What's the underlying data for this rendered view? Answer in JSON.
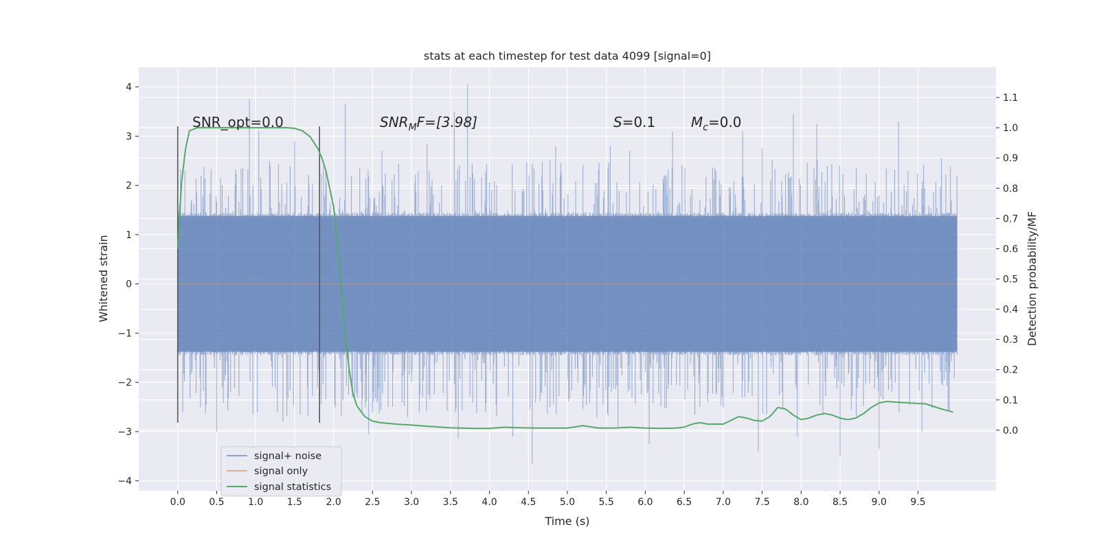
{
  "chart_data": {
    "type": "line",
    "title": "stats at each timestep for test data 4099 [signal=0]",
    "xlabel": "Time (s)",
    "ylabel_left": "Whitened strain",
    "ylabel_right": "Detection probability/MF",
    "xlim": [
      -0.5,
      10.5
    ],
    "ylim_left": [
      -4.2,
      4.4
    ],
    "ylim_right": [
      -0.2,
      1.2
    ],
    "xticks": [
      "0.0",
      "0.5",
      "1.0",
      "1.5",
      "2.0",
      "2.5",
      "3.0",
      "3.5",
      "4.0",
      "4.5",
      "5.0",
      "5.5",
      "6.0",
      "6.5",
      "7.0",
      "7.5",
      "8.0",
      "8.5",
      "9.0",
      "9.5"
    ],
    "yticks_left": [
      "−4",
      "−3",
      "−2",
      "−1",
      "0",
      "1",
      "2",
      "3",
      "4"
    ],
    "yticks_right": [
      "0.0",
      "0.1",
      "0.2",
      "0.3",
      "0.4",
      "0.5",
      "0.6",
      "0.7",
      "0.8",
      "0.9",
      "1.0",
      "1.1"
    ],
    "grid": true,
    "annotations": {
      "snr_opt": "SNR_opt=0.0",
      "snr_mf_prefix": "SNR",
      "snr_mf_sub": "M",
      "snr_mf_suffix": "F=[3.98]",
      "s_italic": "S",
      "s_value": "=0.1",
      "mc_italic": "M",
      "mc_sub": "c",
      "mc_value": "=0.0"
    },
    "vertical_markers_x": [
      0.0,
      1.82
    ],
    "legend": {
      "placement": "lower-left",
      "entries": [
        {
          "label": "signal+ noise",
          "color": "#4c72b0"
        },
        {
          "label": "signal only",
          "color": "#dd8452"
        },
        {
          "label": "signal statistics",
          "color": "#55a868"
        }
      ]
    },
    "series": [
      {
        "name": "signal+ noise",
        "axis": "left",
        "color": "#4c72b0",
        "description_range": "noise band approximately ±1.4 with spikes up to ±4.05",
        "x_range": [
          0.0,
          10.0
        ],
        "spikes_up": [
          [
            0.92,
            3.75
          ],
          [
            1.04,
            3.1
          ],
          [
            1.5,
            2.9
          ],
          [
            1.82,
            3.1
          ],
          [
            2.15,
            3.65
          ],
          [
            2.62,
            2.7
          ],
          [
            3.55,
            3.5
          ],
          [
            3.72,
            4.05
          ],
          [
            4.85,
            2.8
          ],
          [
            5.55,
            2.8
          ],
          [
            5.8,
            2.7
          ],
          [
            6.35,
            3.1
          ],
          [
            7.25,
            3.1
          ],
          [
            7.5,
            2.75
          ],
          [
            7.9,
            3.45
          ],
          [
            8.2,
            3.25
          ],
          [
            9.25,
            3.3
          ],
          [
            9.8,
            2.55
          ],
          [
            0.55,
            2.15
          ],
          [
            3.2,
            2.85
          ]
        ],
        "spikes_down": [
          [
            0.5,
            -3.0
          ],
          [
            1.35,
            -2.8
          ],
          [
            2.45,
            -3.05
          ],
          [
            3.6,
            -3.15
          ],
          [
            4.3,
            -3.1
          ],
          [
            4.55,
            -3.65
          ],
          [
            6.05,
            -3.25
          ],
          [
            7.45,
            -3.4
          ],
          [
            7.95,
            -3.1
          ],
          [
            8.5,
            -3.5
          ],
          [
            9.0,
            -3.35
          ],
          [
            9.55,
            -3.0
          ],
          [
            5.65,
            -2.9
          ],
          [
            2.95,
            -2.7
          ]
        ]
      },
      {
        "name": "signal only",
        "axis": "left",
        "color": "#dd8452",
        "x": [
          0.0,
          10.0
        ],
        "y": [
          0.0,
          0.0
        ]
      },
      {
        "name": "signal statistics",
        "axis": "right",
        "color": "#55a868",
        "x": [
          0.0,
          0.05,
          0.1,
          0.15,
          0.25,
          0.4,
          0.6,
          0.8,
          1.0,
          1.2,
          1.4,
          1.5,
          1.6,
          1.7,
          1.8,
          1.85,
          1.9,
          2.0,
          2.05,
          2.1,
          2.15,
          2.2,
          2.25,
          2.3,
          2.4,
          2.5,
          2.6,
          2.8,
          3.0,
          3.2,
          3.5,
          3.8,
          4.0,
          4.2,
          4.4,
          4.6,
          4.8,
          5.0,
          5.2,
          5.4,
          5.6,
          5.8,
          6.0,
          6.2,
          6.4,
          6.5,
          6.6,
          6.7,
          6.8,
          7.0,
          7.2,
          7.3,
          7.4,
          7.5,
          7.6,
          7.7,
          7.8,
          7.9,
          8.0,
          8.1,
          8.2,
          8.3,
          8.4,
          8.5,
          8.6,
          8.7,
          8.8,
          8.9,
          9.0,
          9.1,
          9.2,
          9.4,
          9.6,
          9.8,
          9.95
        ],
        "y": [
          0.6,
          0.82,
          0.93,
          0.99,
          1.0,
          1.0,
          1.0,
          1.0,
          1.0,
          1.0,
          1.0,
          0.998,
          0.99,
          0.97,
          0.93,
          0.9,
          0.86,
          0.74,
          0.62,
          0.47,
          0.32,
          0.2,
          0.12,
          0.08,
          0.045,
          0.03,
          0.025,
          0.02,
          0.017,
          0.013,
          0.008,
          0.006,
          0.006,
          0.01,
          0.008,
          0.007,
          0.007,
          0.007,
          0.015,
          0.007,
          0.007,
          0.01,
          0.007,
          0.006,
          0.007,
          0.01,
          0.02,
          0.025,
          0.02,
          0.02,
          0.045,
          0.04,
          0.032,
          0.03,
          0.045,
          0.075,
          0.07,
          0.05,
          0.035,
          0.04,
          0.05,
          0.055,
          0.05,
          0.04,
          0.035,
          0.04,
          0.055,
          0.075,
          0.09,
          0.095,
          0.093,
          0.09,
          0.087,
          0.07,
          0.06
        ]
      }
    ]
  }
}
